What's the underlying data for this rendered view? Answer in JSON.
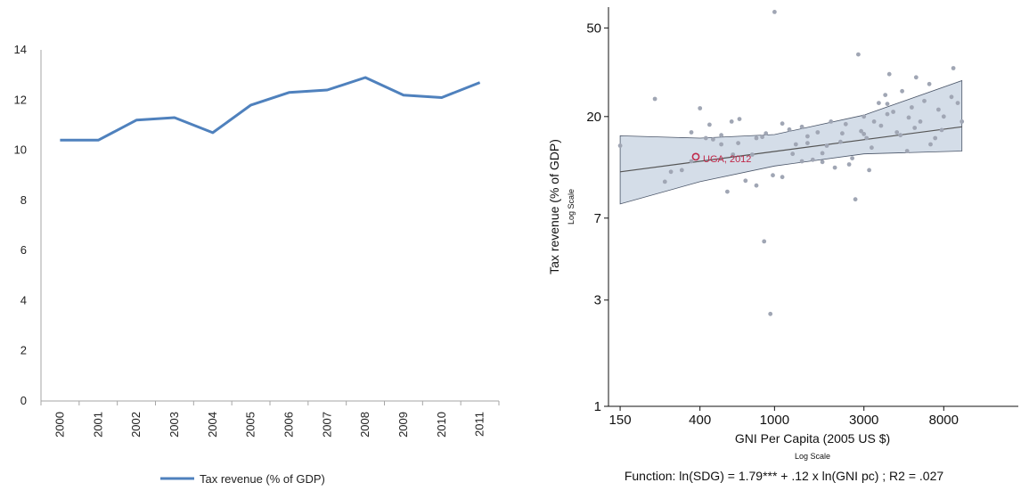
{
  "chart_data": [
    {
      "type": "line",
      "title": "",
      "xlabel": "",
      "ylabel": "",
      "ylim": [
        0,
        14
      ],
      "yticks": [
        0,
        2,
        4,
        6,
        8,
        10,
        12,
        14
      ],
      "categories": [
        "2000",
        "2001",
        "2002",
        "2003",
        "2004",
        "2005",
        "2006",
        "2007",
        "2008",
        "2009",
        "2010",
        "2011"
      ],
      "series": [
        {
          "name": "Tax revenue (% of GDP)",
          "values": [
            10.4,
            10.4,
            11.2,
            11.3,
            10.7,
            11.8,
            12.3,
            12.4,
            12.9,
            12.2,
            12.1,
            12.7
          ]
        }
      ],
      "legend": "bottom",
      "grid": false,
      "color": "#4f81bd"
    },
    {
      "type": "scatter",
      "title": "",
      "xlabel": "GNI Per Capita (2005 US $)",
      "xlabel_note": "Log Scale",
      "ylabel": "Tax revenue (% of GDP)",
      "ylabel_note": "Log Scale",
      "x_scale": "log",
      "y_scale": "log",
      "xlim": [
        130,
        20000
      ],
      "ylim": [
        1,
        62
      ],
      "xticks": [
        150,
        400,
        1000,
        3000,
        8000
      ],
      "yticks": [
        1,
        3,
        7,
        20,
        50
      ],
      "grid": false,
      "footnote": "Function: ln(SDG) = 1.79*** + .12 x ln(GNI pc) ; R2 = .027",
      "highlight": {
        "label": "UGA, 2012",
        "x": 380,
        "y": 13.2,
        "color": "#c0294a"
      },
      "fit_line": {
        "x": [
          150,
          10000
        ],
        "y": [
          11.3,
          18.0
        ]
      },
      "confidence_band": {
        "x": [
          150,
          400,
          1000,
          3000,
          10000
        ],
        "lower": [
          8.1,
          10.2,
          12.0,
          13.6,
          14.0
        ],
        "upper": [
          16.4,
          16.0,
          16.6,
          20.3,
          29.0
        ]
      },
      "points": [
        [
          150,
          14.8
        ],
        [
          230,
          24
        ],
        [
          260,
          10.2
        ],
        [
          280,
          11.3
        ],
        [
          320,
          11.5
        ],
        [
          360,
          17
        ],
        [
          400,
          21.8
        ],
        [
          430,
          16
        ],
        [
          470,
          15.8
        ],
        [
          520,
          16.5
        ],
        [
          560,
          9.2
        ],
        [
          590,
          19
        ],
        [
          650,
          19.5
        ],
        [
          700,
          10.3
        ],
        [
          760,
          13.5
        ],
        [
          800,
          9.8
        ],
        [
          860,
          16.2
        ],
        [
          980,
          10.9
        ],
        [
          1000,
          59
        ],
        [
          1100,
          10.7
        ],
        [
          1200,
          17.5
        ],
        [
          1300,
          15
        ],
        [
          1400,
          18
        ],
        [
          1500,
          15.2
        ],
        [
          1600,
          12.8
        ],
        [
          1700,
          17
        ],
        [
          1800,
          13.7
        ],
        [
          2000,
          19
        ],
        [
          2100,
          11.8
        ],
        [
          2400,
          18.5
        ],
        [
          2600,
          13
        ],
        [
          2700,
          8.5
        ],
        [
          2800,
          38
        ],
        [
          3000,
          20
        ],
        [
          3100,
          16
        ],
        [
          3200,
          11.5
        ],
        [
          3400,
          19
        ],
        [
          3600,
          23
        ],
        [
          3900,
          25
        ],
        [
          4100,
          31
        ],
        [
          4300,
          21
        ],
        [
          4500,
          17
        ],
        [
          4800,
          26
        ],
        [
          5100,
          14
        ],
        [
          5400,
          22
        ],
        [
          5700,
          30
        ],
        [
          6000,
          19
        ],
        [
          6300,
          23.5
        ],
        [
          6700,
          28
        ],
        [
          7200,
          16
        ],
        [
          8000,
          20
        ],
        [
          9000,
          33
        ],
        [
          9500,
          23
        ],
        [
          10000,
          19
        ],
        [
          6800,
          15
        ],
        [
          5600,
          17.8
        ],
        [
          3300,
          14.5
        ],
        [
          2300,
          16.8
        ],
        [
          1900,
          14.8
        ],
        [
          2500,
          12.2
        ],
        [
          4000,
          20.5
        ],
        [
          4700,
          16.5
        ],
        [
          1100,
          18.6
        ],
        [
          900,
          16.8
        ],
        [
          640,
          15.2
        ],
        [
          520,
          15
        ],
        [
          1400,
          12.6
        ],
        [
          3700,
          18.2
        ],
        [
          5200,
          19.8
        ],
        [
          7500,
          21.5
        ],
        [
          7800,
          17.4
        ],
        [
          8800,
          24.5
        ],
        [
          450,
          18.4
        ],
        [
          1250,
          13.6
        ],
        [
          2250,
          15.4
        ],
        [
          2900,
          17.2
        ],
        [
          360,
          12.6
        ],
        [
          800,
          16
        ],
        [
          4000,
          22.8
        ],
        [
          3000,
          16.7
        ],
        [
          1800,
          12.5
        ],
        [
          880,
          5.5
        ],
        [
          950,
          2.6
        ],
        [
          1500,
          16.3
        ],
        [
          600,
          13.5
        ]
      ]
    }
  ],
  "colors": {
    "line": "#4f81bd",
    "axis": "#a6a6a6",
    "band": "#d4dde8",
    "point": "#a0a6b4",
    "highlight": "#c0294a"
  }
}
